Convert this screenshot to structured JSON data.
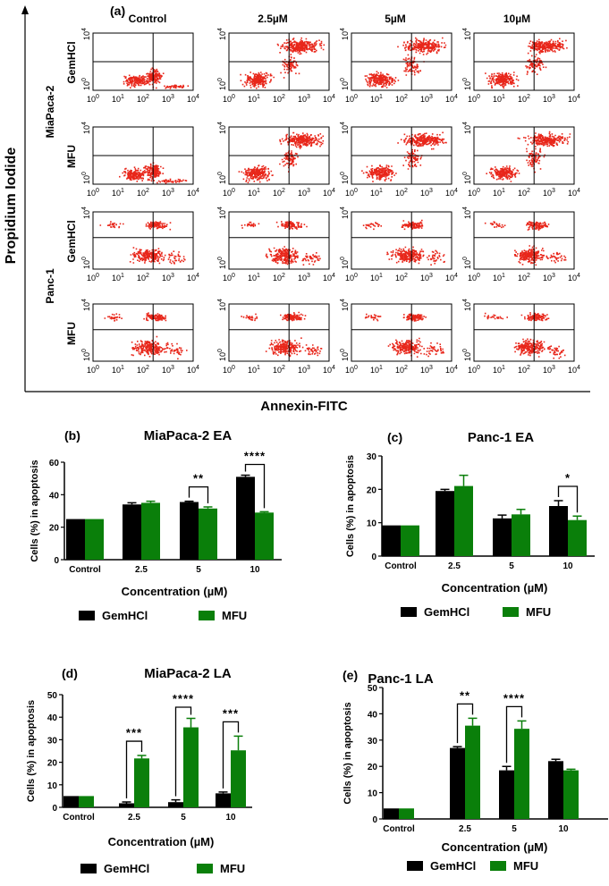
{
  "colors": {
    "gem": "#000000",
    "mfu": "#0a7f0a",
    "dots": "#e8261a"
  },
  "flow_panel": {
    "label": "(a)",
    "y_axis_title": "Propidium Iodide",
    "x_axis_title": "Annexin-FITC",
    "columns": [
      "Control",
      "2.5µM",
      "5µM",
      "10µM"
    ],
    "cell_lines": [
      "MiaPaca-2",
      "Panc-1"
    ],
    "rows": [
      "GemHCl",
      "MFU",
      "GemHCl",
      "MFU"
    ],
    "x_ticks": [
      "10",
      "10",
      "10",
      "10",
      "10"
    ],
    "x_tick_exponents": [
      "0",
      "1",
      "2",
      "3",
      "4"
    ],
    "y_ticks": [
      "10",
      "10"
    ],
    "y_tick_exponents": [
      "4",
      "0"
    ]
  },
  "chart_data": [
    {
      "type": "bar",
      "panel": "(b)",
      "title": "MiaPaca-2 EA",
      "xlabel": "Concentration (µM)",
      "ylabel": "Cells (%) in apoptosis",
      "categories": [
        "Control",
        "2.5",
        "5",
        "10"
      ],
      "ylim": [
        0,
        60
      ],
      "yticks": [
        0,
        20,
        40,
        60
      ],
      "series": [
        {
          "name": "GemHCl",
          "values": [
            25,
            34,
            35.5,
            51
          ],
          "errors": [
            0,
            1,
            0.5,
            1
          ]
        },
        {
          "name": "MFU",
          "values": [
            25,
            35,
            31.5,
            29
          ],
          "errors": [
            0,
            1,
            1,
            0.5
          ]
        }
      ],
      "significance": [
        {
          "category": "5",
          "label": "**"
        },
        {
          "category": "10",
          "label": "****"
        }
      ],
      "legend": "bottom"
    },
    {
      "type": "bar",
      "panel": "(c)",
      "title": "Panc-1 EA",
      "xlabel": "Concentration (µM)",
      "ylabel": "Cells (%) in apoptosis",
      "categories": [
        "Control",
        "2.5",
        "5",
        "10"
      ],
      "ylim": [
        0,
        30
      ],
      "yticks": [
        0,
        10,
        20,
        30
      ],
      "series": [
        {
          "name": "GemHCl",
          "values": [
            9.2,
            19.5,
            11.3,
            15
          ],
          "errors": [
            0,
            0.5,
            1,
            1.6
          ]
        },
        {
          "name": "MFU",
          "values": [
            9.2,
            21,
            12.5,
            10.8
          ],
          "errors": [
            0,
            3.2,
            1.5,
            1.2
          ]
        }
      ],
      "significance": [
        {
          "category": "10",
          "label": "*"
        }
      ],
      "legend": "bottom"
    },
    {
      "type": "bar",
      "panel": "(d)",
      "title": "MiaPaca-2 LA",
      "xlabel": "Concentration (µM)",
      "ylabel": "Cells (%) in apoptosis",
      "categories": [
        "Control",
        "2.5",
        "5",
        "10"
      ],
      "ylim": [
        0,
        50
      ],
      "yticks": [
        0,
        10,
        20,
        30,
        40,
        50
      ],
      "series": [
        {
          "name": "GemHCl",
          "values": [
            5,
            1.8,
            2.3,
            6.2
          ],
          "errors": [
            0,
            0.6,
            1,
            0.6
          ]
        },
        {
          "name": "MFU",
          "values": [
            5,
            21.7,
            35.5,
            25.3
          ],
          "errors": [
            0,
            1.3,
            4,
            6.3
          ]
        }
      ],
      "significance": [
        {
          "category": "2.5",
          "label": "***"
        },
        {
          "category": "5",
          "label": "****"
        },
        {
          "category": "10",
          "label": "***"
        }
      ],
      "legend": "bottom"
    },
    {
      "type": "bar",
      "panel": "(e)",
      "title": "Panc-1 LA",
      "xlabel": "Concentration (µM)",
      "ylabel": "Cells (%) in apoptosis",
      "categories": [
        "Control",
        "2.5",
        "5",
        "10"
      ],
      "ylim": [
        0,
        50
      ],
      "yticks": [
        0,
        10,
        20,
        30,
        40,
        50
      ],
      "series": [
        {
          "name": "GemHCl",
          "values": [
            4,
            27,
            18.5,
            22
          ],
          "errors": [
            0,
            0.5,
            1.5,
            0.7
          ]
        },
        {
          "name": "MFU",
          "values": [
            4,
            35.5,
            34.3,
            18.5
          ],
          "errors": [
            0,
            2.8,
            3,
            0.4
          ]
        }
      ],
      "significance": [
        {
          "category": "2.5",
          "label": "**"
        },
        {
          "category": "5",
          "label": "****"
        }
      ],
      "legend": "bottom"
    }
  ]
}
